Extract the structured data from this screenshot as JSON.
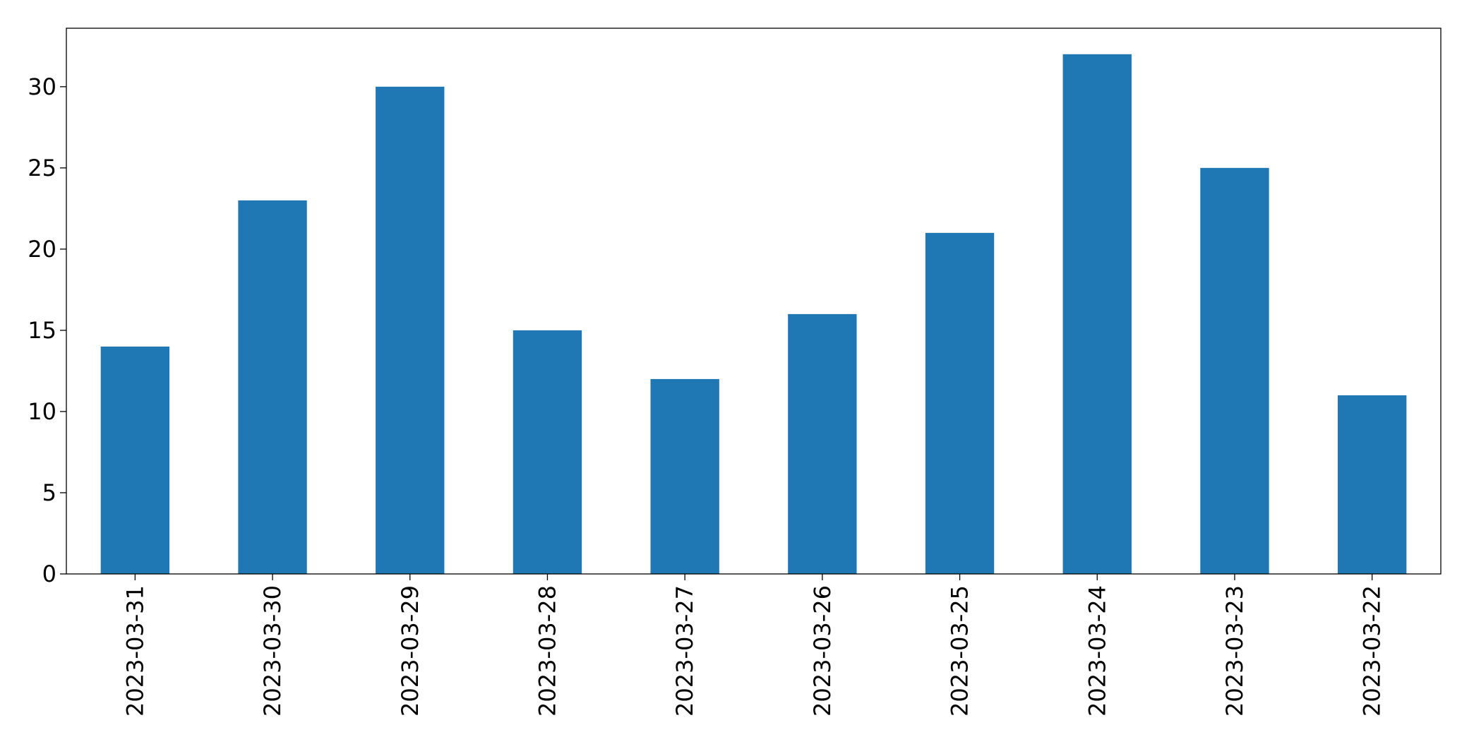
{
  "chart_data": {
    "type": "bar",
    "categories": [
      "2023-03-31",
      "2023-03-30",
      "2023-03-29",
      "2023-03-28",
      "2023-03-27",
      "2023-03-26",
      "2023-03-25",
      "2023-03-24",
      "2023-03-23",
      "2023-03-22"
    ],
    "values": [
      14,
      23,
      30,
      15,
      12,
      16,
      21,
      32,
      25,
      11
    ],
    "color": "#1f77b4",
    "ylim": [
      0,
      33.6
    ],
    "yticks": [
      0,
      5,
      10,
      15,
      20,
      25,
      30
    ],
    "grid": false
  }
}
